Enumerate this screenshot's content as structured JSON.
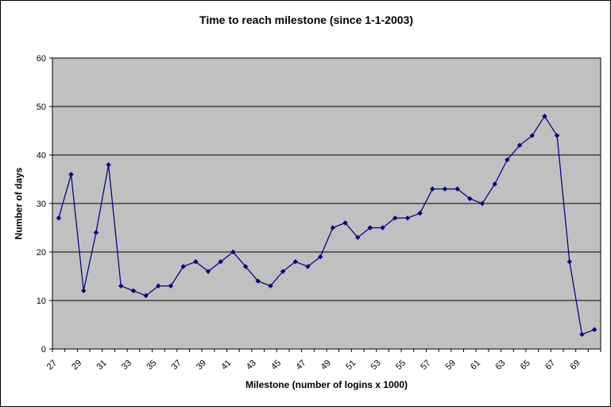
{
  "chart_data": {
    "type": "line",
    "title": "Time to reach milestone (since 1-1-2003)",
    "xlabel": "Milestone (number of logins x 1000)",
    "ylabel": "Number of days",
    "x": [
      27,
      28,
      29,
      30,
      31,
      32,
      33,
      34,
      35,
      36,
      37,
      38,
      39,
      40,
      41,
      42,
      43,
      44,
      45,
      46,
      47,
      48,
      49,
      50,
      51,
      52,
      53,
      54,
      55,
      56,
      57,
      58,
      59,
      60,
      61,
      62,
      63,
      64,
      65,
      66,
      67,
      68,
      69,
      70
    ],
    "values": [
      27,
      36,
      12,
      24,
      38,
      13,
      12,
      11,
      13,
      13,
      17,
      18,
      16,
      18,
      20,
      17,
      14,
      13,
      16,
      18,
      17,
      19,
      25,
      26,
      23,
      25,
      25,
      27,
      27,
      28,
      33,
      33,
      33,
      31,
      30,
      34,
      39,
      42,
      44,
      48,
      44,
      18,
      3,
      4
    ],
    "series_name": "Time to reach milestone",
    "ylim": [
      0,
      60
    ],
    "yticks": [
      0,
      10,
      20,
      30,
      40,
      50,
      60
    ],
    "x_tick_labels": [
      "27",
      "29",
      "31",
      "33",
      "35",
      "37",
      "39",
      "41",
      "43",
      "45",
      "47",
      "49",
      "51",
      "53",
      "55",
      "57",
      "59",
      "61",
      "63",
      "65",
      "67",
      "69"
    ],
    "x_label_rotation_deg": -45,
    "grid": "horizontal gridlines every 10, black",
    "legend": "none",
    "marker": "diamond",
    "colors": {
      "line": "#000080",
      "marker": "#000080",
      "plot_bg": "#C0C0C0",
      "chart_bg": "#FFFFFF",
      "grid": "#000000",
      "axis": "#000000",
      "text": "#000000"
    }
  }
}
